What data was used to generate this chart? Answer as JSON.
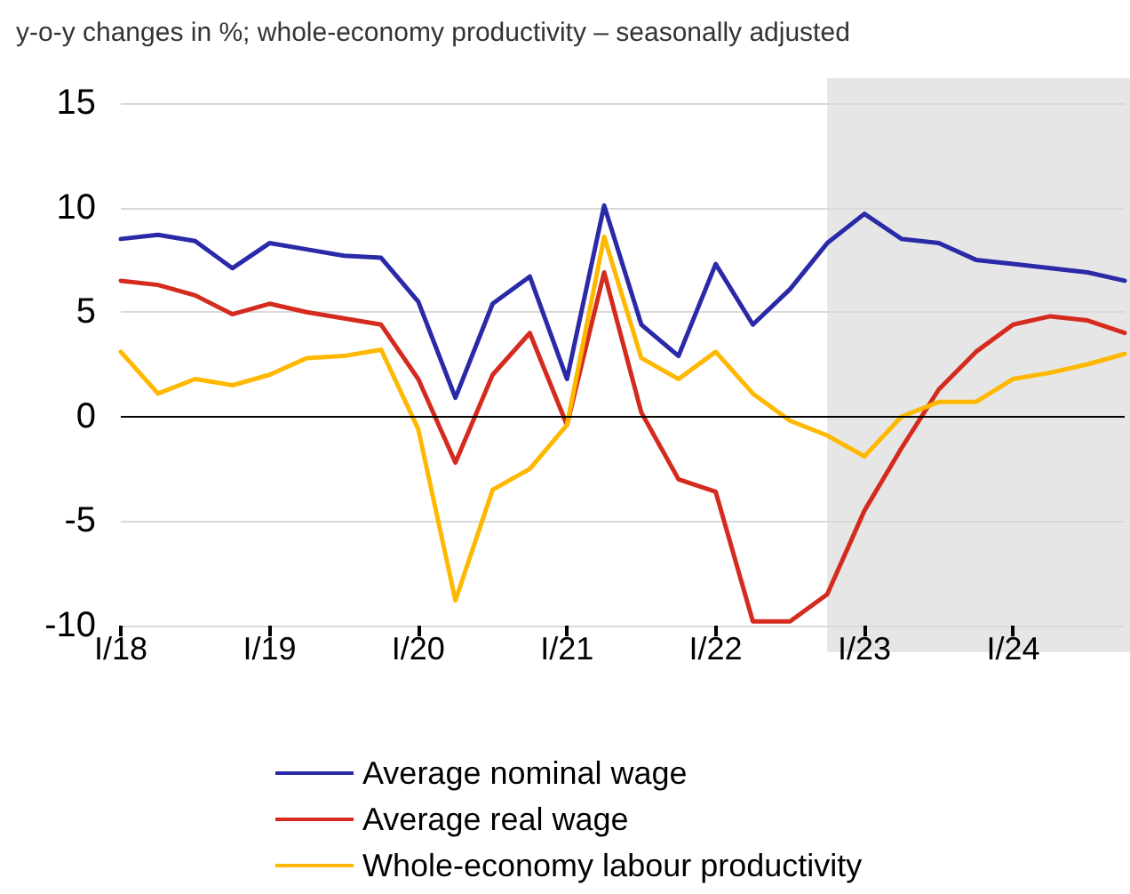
{
  "chart_data": {
    "type": "line",
    "title": "y-o-y changes in %; whole-economy productivity – seasonally adjusted",
    "categories": [
      "I/18",
      null,
      null,
      null,
      "I/19",
      null,
      null,
      null,
      "I/20",
      null,
      null,
      null,
      "I/21",
      null,
      null,
      null,
      "I/22",
      null,
      null,
      null,
      "I/23",
      null,
      null,
      null,
      "I/24",
      null,
      null,
      null
    ],
    "ylim": [
      -10,
      15
    ],
    "yticks": [
      -10,
      -5,
      0,
      5,
      10,
      15
    ],
    "grid": "y",
    "legend": "bottom",
    "marker": "none",
    "line_style": "solid",
    "series": [
      {
        "name": "Average nominal wage",
        "color": "#2a2aa8",
        "values": [
          8.5,
          8.7,
          8.4,
          7.1,
          8.3,
          8.0,
          7.7,
          7.6,
          5.5,
          0.9,
          5.4,
          6.7,
          1.8,
          10.1,
          4.4,
          2.9,
          7.3,
          4.4,
          6.1,
          8.3,
          9.7,
          8.5,
          8.3,
          7.5,
          7.3,
          7.1,
          6.9,
          6.5
        ]
      },
      {
        "name": "Average real wage",
        "color": "#d52b1e",
        "values": [
          6.5,
          6.3,
          5.8,
          4.9,
          5.4,
          5.0,
          4.7,
          4.4,
          1.8,
          -2.2,
          2.0,
          4.0,
          -0.4,
          6.9,
          0.2,
          -3.0,
          -3.6,
          -9.8,
          -9.8,
          -8.5,
          -4.5,
          -1.5,
          1.3,
          3.1,
          4.4,
          4.8,
          4.6,
          4.0
        ]
      },
      {
        "name": "Whole-economy labour productivity",
        "color": "#ffb800",
        "values": [
          3.1,
          1.1,
          1.8,
          1.5,
          2.0,
          2.8,
          2.9,
          3.2,
          -0.6,
          -8.8,
          -3.5,
          -2.5,
          -0.4,
          8.6,
          2.8,
          1.8,
          3.1,
          1.1,
          -0.2,
          -0.9,
          -1.9,
          0.0,
          0.7,
          0.7,
          1.8,
          2.1,
          2.5,
          3.0
        ]
      }
    ],
    "ref_lines": [
      {
        "axis": "y",
        "value": 0,
        "color": "#000000"
      }
    ]
  }
}
